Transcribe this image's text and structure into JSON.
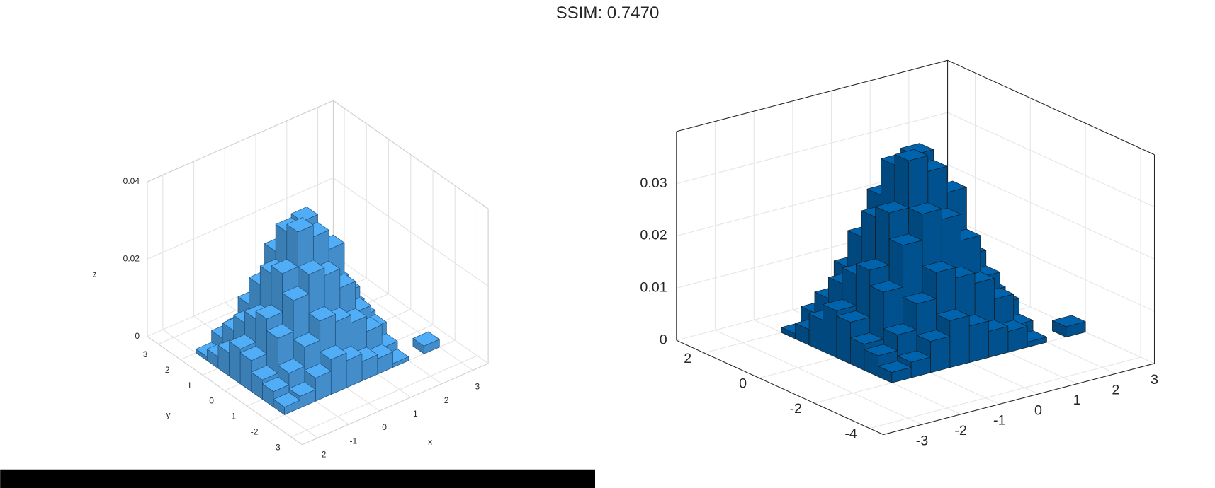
{
  "title": "SSIM: 0.7470",
  "chart_data": [
    {
      "type": "bar3d",
      "color": "#4a9de0",
      "x": [
        -1.75,
        -1.25,
        -0.75,
        -0.25,
        0.25,
        0.75,
        1.25,
        1.75,
        -1.75,
        -1.25,
        -0.75,
        -0.25,
        0.25,
        0.75,
        1.25,
        1.75,
        -1.75,
        -1.25,
        -0.75,
        -0.25,
        0.25,
        0.75,
        1.25,
        1.75,
        -1.75,
        -1.25,
        -0.75,
        -0.25,
        0.25,
        0.75,
        1.25,
        1.75,
        -1.75,
        -1.25,
        -0.75,
        -0.25,
        0.25,
        0.75,
        1.25,
        1.75,
        -1.75,
        -1.25,
        -0.75,
        -0.25,
        0.25,
        0.75,
        1.25,
        1.75,
        -1.75,
        -1.25,
        -0.75,
        -0.25,
        0.25,
        0.75,
        1.25,
        1.75,
        -1.75,
        -1.25,
        -0.75,
        -0.25,
        0.25,
        0.75,
        1.25,
        1.75,
        2.75
      ],
      "y": [
        -1.75,
        -1.75,
        -1.75,
        -1.75,
        -1.75,
        -1.75,
        -1.75,
        -1.75,
        -1.25,
        -1.25,
        -1.25,
        -1.25,
        -1.25,
        -1.25,
        -1.25,
        -1.25,
        -0.75,
        -0.75,
        -0.75,
        -0.75,
        -0.75,
        -0.75,
        -0.75,
        -0.75,
        -0.25,
        -0.25,
        -0.25,
        -0.25,
        -0.25,
        -0.25,
        -0.25,
        -0.25,
        0.25,
        0.25,
        0.25,
        0.25,
        0.25,
        0.25,
        0.25,
        0.25,
        0.75,
        0.75,
        0.75,
        0.75,
        0.75,
        0.75,
        0.75,
        0.75,
        1.25,
        1.25,
        1.25,
        1.25,
        1.25,
        1.25,
        1.25,
        1.25,
        1.75,
        1.75,
        1.75,
        1.75,
        1.75,
        1.75,
        1.75,
        1.75,
        -1.75
      ],
      "values": [
        0.002,
        0.003,
        0.006,
        0.009,
        0.007,
        0.005,
        0.004,
        0.001,
        0.004,
        0.007,
        0.012,
        0.017,
        0.015,
        0.013,
        0.009,
        0.003,
        0.005,
        0.014,
        0.022,
        0.027,
        0.025,
        0.02,
        0.012,
        0.006,
        0.008,
        0.017,
        0.027,
        0.036,
        0.033,
        0.028,
        0.015,
        0.007,
        0.009,
        0.015,
        0.025,
        0.034,
        0.035,
        0.024,
        0.016,
        0.008,
        0.006,
        0.012,
        0.02,
        0.027,
        0.026,
        0.022,
        0.014,
        0.005,
        0.003,
        0.008,
        0.013,
        0.015,
        0.017,
        0.012,
        0.008,
        0.004,
        0.001,
        0.004,
        0.005,
        0.007,
        0.008,
        0.006,
        0.003,
        0.002,
        0.002
      ],
      "xlim": [
        -2.5,
        3.5
      ],
      "ylim": [
        -3.5,
        3.5
      ],
      "zlim": [
        0,
        0.04
      ],
      "xticks": [
        -2,
        -1,
        0,
        1,
        2,
        3
      ],
      "yticks": [
        -3,
        -2,
        -1,
        0,
        1,
        2,
        3
      ],
      "zticks": [
        0,
        0.02,
        0.04
      ],
      "xlabel": "x",
      "ylabel": "y",
      "zlabel": "z",
      "grid": true
    },
    {
      "type": "bar3d",
      "color": "#005a9e",
      "x": [
        -1.75,
        -1.25,
        -0.75,
        -0.25,
        0.25,
        0.75,
        1.25,
        1.75,
        -1.75,
        -1.25,
        -0.75,
        -0.25,
        0.25,
        0.75,
        1.25,
        1.75,
        -1.75,
        -1.25,
        -0.75,
        -0.25,
        0.25,
        0.75,
        1.25,
        1.75,
        -1.75,
        -1.25,
        -0.75,
        -0.25,
        0.25,
        0.75,
        1.25,
        1.75,
        -1.75,
        -1.25,
        -0.75,
        -0.25,
        0.25,
        0.75,
        1.25,
        1.75,
        -1.75,
        -1.25,
        -0.75,
        -0.25,
        0.25,
        0.75,
        1.25,
        1.75,
        -1.75,
        -1.25,
        -0.75,
        -0.25,
        0.25,
        0.75,
        1.25,
        1.75,
        -1.75,
        -1.25,
        -0.75,
        -0.25,
        0.25,
        0.75,
        1.25,
        1.75,
        2.75
      ],
      "y": [
        -1.75,
        -1.75,
        -1.75,
        -1.75,
        -1.75,
        -1.75,
        -1.75,
        -1.75,
        -1.25,
        -1.25,
        -1.25,
        -1.25,
        -1.25,
        -1.25,
        -1.25,
        -1.25,
        -0.75,
        -0.75,
        -0.75,
        -0.75,
        -0.75,
        -0.75,
        -0.75,
        -0.75,
        -0.25,
        -0.25,
        -0.25,
        -0.25,
        -0.25,
        -0.25,
        -0.25,
        -0.25,
        0.25,
        0.25,
        0.25,
        0.25,
        0.25,
        0.25,
        0.25,
        0.25,
        0.75,
        0.75,
        0.75,
        0.75,
        0.75,
        0.75,
        0.75,
        0.75,
        1.25,
        1.25,
        1.25,
        1.25,
        1.25,
        1.25,
        1.25,
        1.25,
        1.75,
        1.75,
        1.75,
        1.75,
        1.75,
        1.75,
        1.75,
        1.75,
        -1.75
      ],
      "values": [
        0.002,
        0.003,
        0.006,
        0.009,
        0.007,
        0.005,
        0.004,
        0.001,
        0.004,
        0.007,
        0.012,
        0.017,
        0.015,
        0.013,
        0.009,
        0.003,
        0.005,
        0.014,
        0.022,
        0.027,
        0.025,
        0.02,
        0.012,
        0.006,
        0.008,
        0.017,
        0.027,
        0.036,
        0.033,
        0.028,
        0.015,
        0.007,
        0.009,
        0.015,
        0.025,
        0.034,
        0.035,
        0.024,
        0.016,
        0.008,
        0.006,
        0.012,
        0.02,
        0.027,
        0.026,
        0.022,
        0.014,
        0.005,
        0.003,
        0.008,
        0.013,
        0.015,
        0.017,
        0.012,
        0.008,
        0.004,
        0.001,
        0.004,
        0.005,
        0.007,
        0.008,
        0.006,
        0.003,
        0.002,
        0.002
      ],
      "xlim": [
        -4,
        3
      ],
      "ylim": [
        -4.5,
        3
      ],
      "zlim": [
        0,
        0.04
      ],
      "xticks": [
        -3,
        -2,
        -1,
        0,
        1,
        2,
        3
      ],
      "yticks": [
        -4,
        -2,
        0,
        2
      ],
      "zticks": [
        0,
        0.01,
        0.02,
        0.03
      ],
      "grid": true
    }
  ]
}
